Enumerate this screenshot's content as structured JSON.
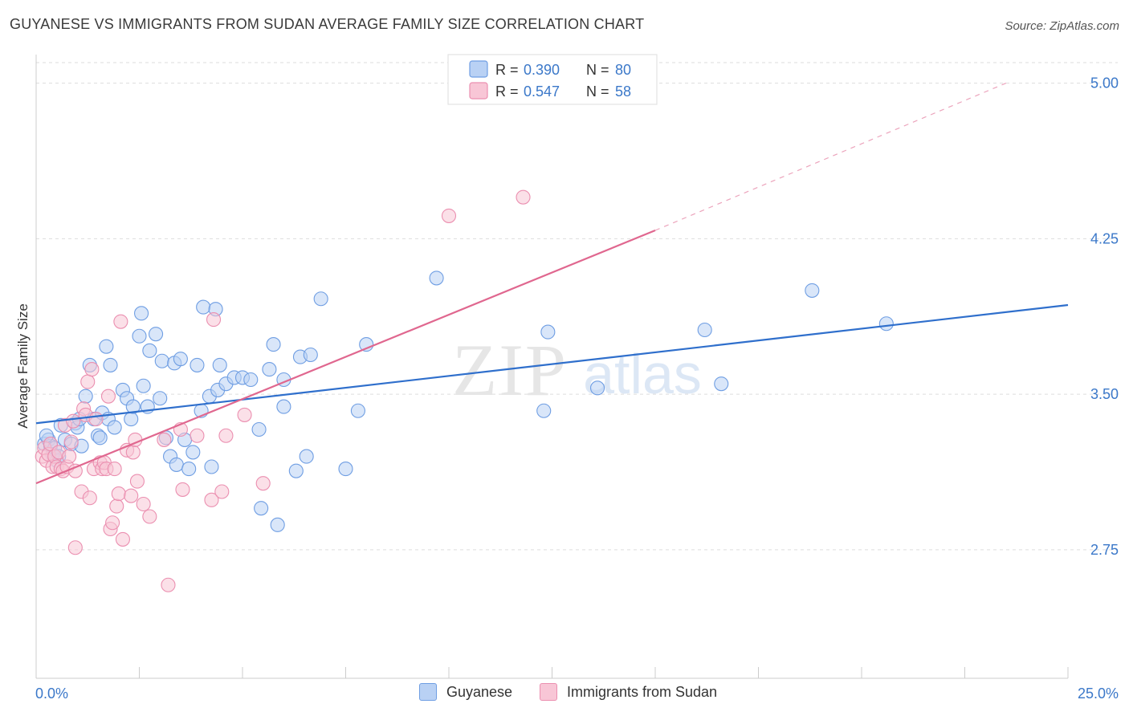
{
  "title": "GUYANESE VS IMMIGRANTS FROM SUDAN AVERAGE FAMILY SIZE CORRELATION CHART",
  "source": "Source: ZipAtlas.com",
  "watermark": {
    "zip": "ZIP",
    "atlas": "atlas"
  },
  "colors": {
    "blue": "#6f9ee3",
    "blue_fill": "#b9d1f4",
    "blue_line": "#2f6fcc",
    "pink": "#eb8fb0",
    "pink_fill": "#f8c6d6",
    "pink_line": "#e0678f",
    "axis_label": "#3b78c9",
    "grid": "#dddddd"
  },
  "legend": {
    "r_label": "R =",
    "n_label": "N =",
    "entries": [
      {
        "r": "0.390",
        "n": "80"
      },
      {
        "r": "0.547",
        "n": "58"
      }
    ]
  },
  "chart_data": {
    "type": "scatter",
    "xlabel": "",
    "ylabel": "Average Family Size",
    "xlim": [
      0,
      25
    ],
    "ylim": [
      2.13,
      5.13
    ],
    "x_tick_labels": [
      "0.0%",
      "25.0%"
    ],
    "y_ticks": [
      2.75,
      3.5,
      4.25,
      5.0
    ],
    "y_tick_labels": [
      "2.75",
      "3.50",
      "4.25",
      "5.00"
    ],
    "grid": true,
    "legend_position": "top-center",
    "series": [
      {
        "name": "Guyanese",
        "color": "#6f9ee3",
        "trend": {
          "x0": 0,
          "y0": 3.36,
          "x1": 25,
          "y1": 3.93
        },
        "points": [
          [
            0.2,
            3.26
          ],
          [
            0.3,
            3.28
          ],
          [
            0.35,
            3.25
          ],
          [
            0.4,
            3.21
          ],
          [
            0.45,
            3.24
          ],
          [
            0.5,
            3.18
          ],
          [
            0.55,
            3.2
          ],
          [
            0.6,
            3.35
          ],
          [
            0.7,
            3.28
          ],
          [
            0.85,
            3.26
          ],
          [
            0.95,
            3.36
          ],
          [
            1.0,
            3.34
          ],
          [
            1.05,
            3.38
          ],
          [
            1.1,
            3.25
          ],
          [
            1.2,
            3.49
          ],
          [
            1.3,
            3.64
          ],
          [
            1.4,
            3.38
          ],
          [
            1.5,
            3.3
          ],
          [
            1.55,
            3.29
          ],
          [
            1.6,
            3.41
          ],
          [
            1.7,
            3.73
          ],
          [
            1.75,
            3.38
          ],
          [
            1.8,
            3.64
          ],
          [
            1.9,
            3.34
          ],
          [
            2.1,
            3.52
          ],
          [
            2.2,
            3.48
          ],
          [
            2.3,
            3.38
          ],
          [
            2.35,
            3.44
          ],
          [
            2.5,
            3.78
          ],
          [
            2.55,
            3.89
          ],
          [
            2.6,
            3.54
          ],
          [
            2.7,
            3.44
          ],
          [
            2.75,
            3.71
          ],
          [
            2.9,
            3.79
          ],
          [
            3.0,
            3.48
          ],
          [
            3.05,
            3.66
          ],
          [
            3.15,
            3.29
          ],
          [
            3.25,
            3.2
          ],
          [
            3.35,
            3.65
          ],
          [
            3.4,
            3.16
          ],
          [
            3.5,
            3.67
          ],
          [
            3.6,
            3.28
          ],
          [
            3.7,
            3.14
          ],
          [
            3.8,
            3.22
          ],
          [
            3.9,
            3.64
          ],
          [
            4.0,
            3.42
          ],
          [
            4.05,
            3.92
          ],
          [
            4.2,
            3.49
          ],
          [
            4.25,
            3.15
          ],
          [
            4.35,
            3.91
          ],
          [
            4.4,
            3.52
          ],
          [
            4.45,
            3.64
          ],
          [
            4.6,
            3.55
          ],
          [
            4.8,
            3.58
          ],
          [
            5.0,
            3.58
          ],
          [
            5.2,
            3.57
          ],
          [
            5.4,
            3.33
          ],
          [
            5.45,
            2.95
          ],
          [
            5.65,
            3.62
          ],
          [
            5.75,
            3.74
          ],
          [
            5.85,
            2.87
          ],
          [
            6.0,
            3.44
          ],
          [
            6.0,
            3.57
          ],
          [
            6.3,
            3.13
          ],
          [
            6.4,
            3.68
          ],
          [
            6.55,
            3.2
          ],
          [
            6.65,
            3.69
          ],
          [
            6.9,
            3.96
          ],
          [
            7.5,
            3.14
          ],
          [
            7.8,
            3.42
          ],
          [
            8.0,
            3.74
          ],
          [
            9.7,
            4.06
          ],
          [
            12.3,
            3.42
          ],
          [
            12.4,
            3.8
          ],
          [
            13.6,
            3.53
          ],
          [
            16.2,
            3.81
          ],
          [
            16.6,
            3.55
          ],
          [
            18.8,
            4.0
          ],
          [
            20.6,
            3.84
          ],
          [
            0.25,
            3.3
          ]
        ]
      },
      {
        "name": "Immigrants from Sudan",
        "color": "#eb8fb0",
        "trend": {
          "x0": 0,
          "y0": 3.07,
          "x1": 15,
          "y1": 4.29,
          "dash_x1": 23.5,
          "dash_y1": 5.0
        },
        "points": [
          [
            0.15,
            3.2
          ],
          [
            0.2,
            3.24
          ],
          [
            0.25,
            3.18
          ],
          [
            0.3,
            3.21
          ],
          [
            0.35,
            3.26
          ],
          [
            0.4,
            3.15
          ],
          [
            0.45,
            3.2
          ],
          [
            0.5,
            3.15
          ],
          [
            0.55,
            3.22
          ],
          [
            0.6,
            3.14
          ],
          [
            0.65,
            3.13
          ],
          [
            0.7,
            3.35
          ],
          [
            0.75,
            3.15
          ],
          [
            0.8,
            3.2
          ],
          [
            0.85,
            3.27
          ],
          [
            0.9,
            3.37
          ],
          [
            0.95,
            3.13
          ],
          [
            0.95,
            2.76
          ],
          [
            1.1,
            3.03
          ],
          [
            1.15,
            3.43
          ],
          [
            1.2,
            3.4
          ],
          [
            1.25,
            3.56
          ],
          [
            1.3,
            3.0
          ],
          [
            1.35,
            3.62
          ],
          [
            1.4,
            3.14
          ],
          [
            1.45,
            3.38
          ],
          [
            1.55,
            3.17
          ],
          [
            1.6,
            3.14
          ],
          [
            1.65,
            3.17
          ],
          [
            1.7,
            3.14
          ],
          [
            1.75,
            3.49
          ],
          [
            1.8,
            2.85
          ],
          [
            1.85,
            2.88
          ],
          [
            1.9,
            3.14
          ],
          [
            1.95,
            2.96
          ],
          [
            2.0,
            3.02
          ],
          [
            2.05,
            3.85
          ],
          [
            2.1,
            2.8
          ],
          [
            2.2,
            3.23
          ],
          [
            2.3,
            3.01
          ],
          [
            2.35,
            3.22
          ],
          [
            2.4,
            3.28
          ],
          [
            2.45,
            3.08
          ],
          [
            2.6,
            2.97
          ],
          [
            2.75,
            2.91
          ],
          [
            3.1,
            3.28
          ],
          [
            3.2,
            2.58
          ],
          [
            3.5,
            3.33
          ],
          [
            3.55,
            3.04
          ],
          [
            3.9,
            3.3
          ],
          [
            4.25,
            2.99
          ],
          [
            4.3,
            3.86
          ],
          [
            4.5,
            3.03
          ],
          [
            4.6,
            3.3
          ],
          [
            5.05,
            3.4
          ],
          [
            5.5,
            3.07
          ],
          [
            10.0,
            4.36
          ],
          [
            11.8,
            4.45
          ]
        ]
      }
    ]
  }
}
